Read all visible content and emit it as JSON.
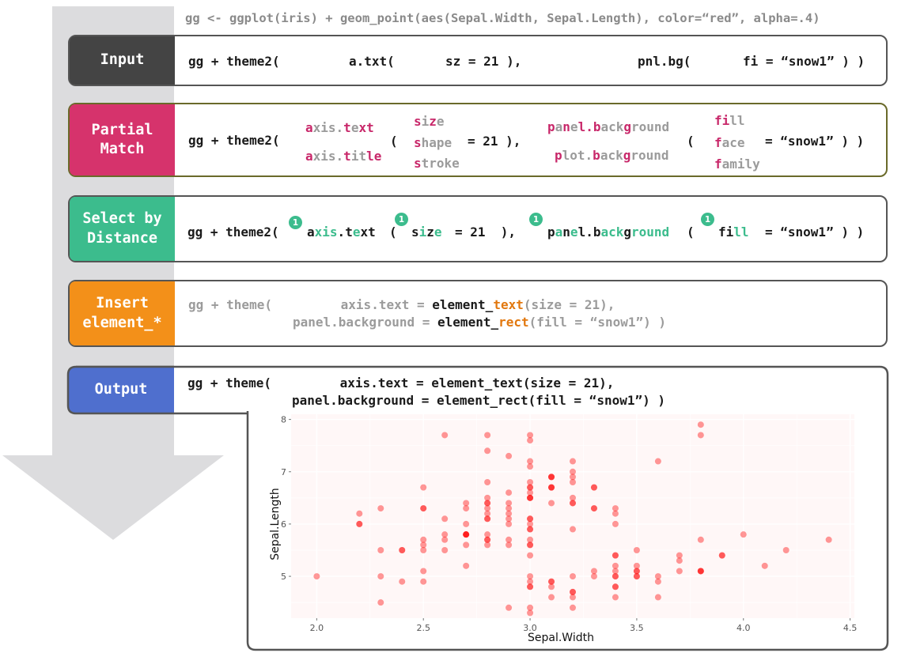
{
  "preamble": "gg <- ggplot(iris) + geom_point(aes(Sepal.Width, Sepal.Length), color=“red”, alpha=.4)",
  "steps": {
    "input": {
      "label": "Input",
      "color": "#444444",
      "tokens": [
        "gg + theme2(",
        "a.txt(",
        "sz = 21 ),",
        "pnl.bg(",
        "fi = “snow1” ) )"
      ]
    },
    "partial": {
      "label": "Partial\nMatch",
      "color": "#d6336c",
      "prefix": "gg + theme2(",
      "arg1_candidates": [
        [
          [
            "a",
            "m"
          ],
          [
            "xis.",
            "g"
          ],
          [
            "t",
            "m"
          ],
          [
            "e",
            "g"
          ],
          [
            "xt",
            "m"
          ]
        ],
        [
          [
            "a",
            "m"
          ],
          [
            "xis.",
            "g"
          ],
          [
            "t",
            "m"
          ],
          [
            "i",
            "g"
          ],
          [
            "t",
            "g"
          ],
          [
            "le",
            "m"
          ]
        ]
      ],
      "open_paren": "(",
      "arg1_inner_candidates": [
        [
          [
            "s",
            "m"
          ],
          [
            "i",
            "g"
          ],
          [
            "z",
            "m"
          ],
          [
            "e",
            "g"
          ]
        ],
        [
          [
            "s",
            "m"
          ],
          [
            "hape",
            "g"
          ]
        ],
        [
          [
            "s",
            "m"
          ],
          [
            "troke",
            "g"
          ]
        ]
      ],
      "arg1_value": "= 21 ),",
      "arg2_candidates": [
        [
          [
            "p",
            "m"
          ],
          [
            "a",
            "g"
          ],
          [
            "n",
            "m"
          ],
          [
            "e",
            "g"
          ],
          [
            "l.",
            "m"
          ],
          [
            "b",
            "m"
          ],
          [
            "ack",
            "g"
          ],
          [
            "g",
            "m"
          ],
          [
            "round",
            "g"
          ]
        ],
        [
          [
            "p",
            "m"
          ],
          [
            "lot.",
            "g"
          ],
          [
            "b",
            "m"
          ],
          [
            "ack",
            "g"
          ],
          [
            "g",
            "m"
          ],
          [
            "round",
            "g"
          ]
        ]
      ],
      "open_paren2": "(",
      "arg2_inner_candidates": [
        [
          [
            "f",
            "m"
          ],
          [
            "i",
            "m"
          ],
          [
            "ll",
            "g"
          ]
        ],
        [
          [
            "f",
            "m"
          ],
          [
            "ace",
            "g"
          ]
        ],
        [
          [
            "f",
            "m"
          ],
          [
            "amily",
            "g"
          ]
        ]
      ],
      "arg2_value": "= “snow1” ) )"
    },
    "select": {
      "label": "Select by\nDistance",
      "color": "#3cbc8d",
      "prefix": "gg + theme2(",
      "badge": "1",
      "arg1": [
        [
          "a",
          "k"
        ],
        [
          "xis",
          "t"
        ],
        [
          ".",
          "k"
        ],
        [
          "t",
          "k"
        ],
        [
          "e",
          "t"
        ],
        [
          "xt",
          "k"
        ]
      ],
      "open_paren": "(",
      "inner1": [
        [
          "s",
          "k"
        ],
        [
          "i",
          "t"
        ],
        [
          "z",
          "k"
        ],
        [
          "e",
          "t"
        ]
      ],
      "value1": "= 21  ),",
      "arg2": [
        [
          "p",
          "k"
        ],
        [
          "a",
          "t"
        ],
        [
          "n",
          "k"
        ],
        [
          "e",
          "t"
        ],
        [
          "l.b",
          "k"
        ],
        [
          "ack",
          "t"
        ],
        [
          "g",
          "k"
        ],
        [
          "round",
          "t"
        ]
      ],
      "open_paren2": "(",
      "inner2": [
        [
          "fi",
          "k"
        ],
        [
          "ll",
          "t"
        ]
      ],
      "value2": "= “snow1” ) )"
    },
    "insert": {
      "label": "Insert\nelement_*",
      "color": "#f39019",
      "line1": [
        [
          "gg + theme(         axis.text = ",
          "g"
        ],
        [
          "element_",
          "k"
        ],
        [
          "text",
          "o"
        ],
        [
          "(size = 21),",
          "g"
        ]
      ],
      "line2": [
        [
          "panel.background = ",
          "g"
        ],
        [
          "element_",
          "k"
        ],
        [
          "rect",
          "o"
        ],
        [
          "(fill = “snow1”) )",
          "g"
        ]
      ]
    },
    "output": {
      "label": "Output",
      "color": "#4f6fce",
      "line1": "gg + theme(         axis.text = element_text(size = 21),",
      "line2": "panel.background = element_rect(fill = “snow1”) )"
    }
  },
  "colors": {
    "arrow": "#dcdcde",
    "border": "#555555",
    "gray_text": "#9b9b9b",
    "match": "#c8286a",
    "distance": "#3cbc8d",
    "insert": "#e2780f",
    "panel_bg": "#fff7f7",
    "grid": "#ffffff",
    "point": "#ff0000"
  },
  "chart_data": {
    "type": "scatter",
    "title": "",
    "xlabel": "Sepal.Width",
    "ylabel": "Sepal.Length",
    "xlim": [
      1.88,
      4.52
    ],
    "ylim": [
      4.2,
      8.1
    ],
    "xticks": [
      "2.0",
      "2.5",
      "3.0",
      "3.5",
      "4.0",
      "4.5"
    ],
    "yticks": [
      "5",
      "6",
      "7",
      "8"
    ],
    "point_color": "#ff0000",
    "alpha": 0.4,
    "points": [
      [
        3.5,
        5.1
      ],
      [
        3.0,
        4.9
      ],
      [
        3.2,
        4.7
      ],
      [
        3.1,
        4.6
      ],
      [
        3.6,
        5.0
      ],
      [
        3.9,
        5.4
      ],
      [
        3.4,
        4.6
      ],
      [
        3.4,
        5.0
      ],
      [
        2.9,
        4.4
      ],
      [
        3.1,
        4.9
      ],
      [
        3.7,
        5.4
      ],
      [
        3.4,
        4.8
      ],
      [
        3.0,
        4.8
      ],
      [
        3.0,
        4.3
      ],
      [
        4.0,
        5.8
      ],
      [
        4.4,
        5.7
      ],
      [
        3.9,
        5.4
      ],
      [
        3.5,
        5.1
      ],
      [
        3.8,
        5.7
      ],
      [
        3.8,
        5.1
      ],
      [
        3.4,
        5.4
      ],
      [
        3.7,
        5.1
      ],
      [
        3.6,
        4.6
      ],
      [
        3.3,
        5.1
      ],
      [
        3.4,
        4.8
      ],
      [
        3.0,
        5.0
      ],
      [
        3.4,
        5.0
      ],
      [
        3.5,
        5.2
      ],
      [
        3.4,
        5.2
      ],
      [
        3.2,
        4.7
      ],
      [
        3.1,
        4.8
      ],
      [
        3.4,
        5.4
      ],
      [
        4.1,
        5.2
      ],
      [
        4.2,
        5.5
      ],
      [
        3.1,
        4.9
      ],
      [
        3.2,
        5.0
      ],
      [
        3.5,
        5.5
      ],
      [
        3.6,
        4.9
      ],
      [
        3.0,
        4.4
      ],
      [
        3.4,
        5.1
      ],
      [
        3.5,
        5.0
      ],
      [
        2.3,
        4.5
      ],
      [
        3.2,
        4.4
      ],
      [
        3.5,
        5.0
      ],
      [
        3.8,
        5.1
      ],
      [
        3.0,
        4.8
      ],
      [
        3.8,
        5.1
      ],
      [
        3.2,
        4.6
      ],
      [
        3.7,
        5.3
      ],
      [
        3.3,
        5.0
      ],
      [
        3.2,
        7.0
      ],
      [
        3.2,
        6.4
      ],
      [
        3.1,
        6.9
      ],
      [
        2.3,
        5.5
      ],
      [
        2.8,
        6.5
      ],
      [
        2.8,
        5.7
      ],
      [
        3.3,
        6.3
      ],
      [
        2.4,
        4.9
      ],
      [
        2.9,
        6.6
      ],
      [
        2.7,
        5.2
      ],
      [
        2.0,
        5.0
      ],
      [
        3.0,
        5.9
      ],
      [
        2.2,
        6.0
      ],
      [
        2.9,
        6.1
      ],
      [
        2.9,
        5.6
      ],
      [
        3.1,
        6.7
      ],
      [
        3.0,
        5.6
      ],
      [
        2.7,
        5.8
      ],
      [
        2.2,
        6.2
      ],
      [
        2.5,
        5.6
      ],
      [
        3.2,
        5.9
      ],
      [
        2.8,
        6.1
      ],
      [
        2.5,
        6.3
      ],
      [
        2.8,
        6.1
      ],
      [
        2.9,
        6.4
      ],
      [
        3.0,
        6.6
      ],
      [
        2.8,
        6.8
      ],
      [
        3.0,
        6.7
      ],
      [
        2.9,
        6.0
      ],
      [
        2.6,
        5.7
      ],
      [
        2.4,
        5.5
      ],
      [
        2.4,
        5.5
      ],
      [
        2.7,
        5.8
      ],
      [
        2.7,
        6.0
      ],
      [
        3.0,
        5.4
      ],
      [
        3.4,
        6.0
      ],
      [
        3.1,
        6.7
      ],
      [
        2.3,
        6.3
      ],
      [
        3.0,
        5.6
      ],
      [
        2.5,
        5.5
      ],
      [
        2.6,
        5.5
      ],
      [
        3.0,
        6.1
      ],
      [
        2.6,
        5.8
      ],
      [
        2.3,
        5.0
      ],
      [
        2.7,
        5.6
      ],
      [
        3.0,
        5.7
      ],
      [
        2.9,
        5.7
      ],
      [
        2.9,
        6.2
      ],
      [
        2.5,
        5.1
      ],
      [
        2.8,
        5.7
      ],
      [
        3.3,
        6.3
      ],
      [
        2.7,
        5.8
      ],
      [
        3.0,
        7.1
      ],
      [
        2.9,
        6.3
      ],
      [
        3.0,
        6.5
      ],
      [
        3.0,
        7.6
      ],
      [
        2.5,
        4.9
      ],
      [
        2.9,
        7.3
      ],
      [
        2.5,
        6.7
      ],
      [
        3.6,
        7.2
      ],
      [
        3.2,
        6.5
      ],
      [
        2.7,
        6.4
      ],
      [
        3.0,
        6.8
      ],
      [
        2.5,
        5.7
      ],
      [
        2.8,
        5.8
      ],
      [
        3.2,
        6.4
      ],
      [
        3.0,
        6.5
      ],
      [
        3.8,
        7.7
      ],
      [
        2.6,
        7.7
      ],
      [
        2.2,
        6.0
      ],
      [
        3.2,
        6.9
      ],
      [
        2.8,
        5.6
      ],
      [
        2.8,
        7.7
      ],
      [
        2.7,
        6.3
      ],
      [
        3.3,
        6.7
      ],
      [
        3.2,
        7.2
      ],
      [
        2.8,
        6.2
      ],
      [
        3.0,
        6.1
      ],
      [
        2.8,
        6.4
      ],
      [
        3.0,
        7.2
      ],
      [
        2.8,
        7.4
      ],
      [
        3.8,
        7.9
      ],
      [
        2.8,
        6.4
      ],
      [
        2.8,
        6.3
      ],
      [
        2.6,
        6.1
      ],
      [
        3.0,
        7.7
      ],
      [
        3.4,
        6.3
      ],
      [
        3.1,
        6.4
      ],
      [
        3.0,
        6.0
      ],
      [
        3.1,
        6.9
      ],
      [
        3.1,
        6.7
      ],
      [
        3.1,
        6.9
      ],
      [
        2.7,
        5.8
      ],
      [
        3.2,
        6.8
      ],
      [
        3.3,
        6.7
      ],
      [
        3.0,
        6.7
      ],
      [
        2.5,
        6.3
      ],
      [
        3.0,
        6.5
      ],
      [
        3.4,
        6.2
      ],
      [
        3.0,
        5.9
      ]
    ]
  }
}
